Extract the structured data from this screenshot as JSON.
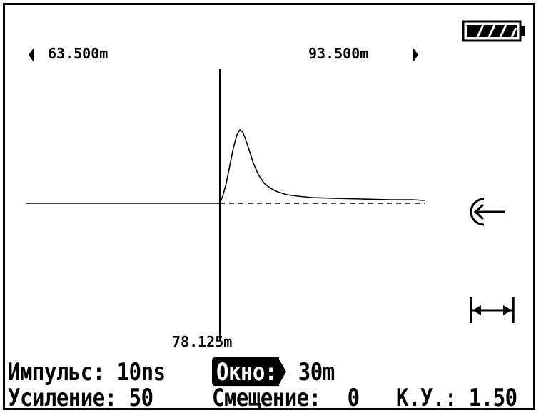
{
  "range": {
    "start": "63.500m",
    "end": "93.500m"
  },
  "cursor": {
    "position": "78.125m"
  },
  "battery": {
    "level": 1.0
  },
  "icons": {
    "left_nav": "arrow-left-icon",
    "right_nav": "arrow-right-icon",
    "battery": "battery-icon",
    "cursor_mode": "cursor-return-icon",
    "width_mode": "horizontal-span-icon"
  },
  "params": {
    "pulse_label": "Импульс:",
    "pulse_value": "10ns",
    "window_label": "Окно:",
    "window_value": "30m",
    "gain_label": "Усиление:",
    "gain_value": "50",
    "offset_label": "Смещение:",
    "offset_value": "0",
    "ku_label": "К.У.:",
    "ku_value": "1.50"
  },
  "colors": {
    "foreground": "#000000",
    "background": "#ffffff"
  }
}
